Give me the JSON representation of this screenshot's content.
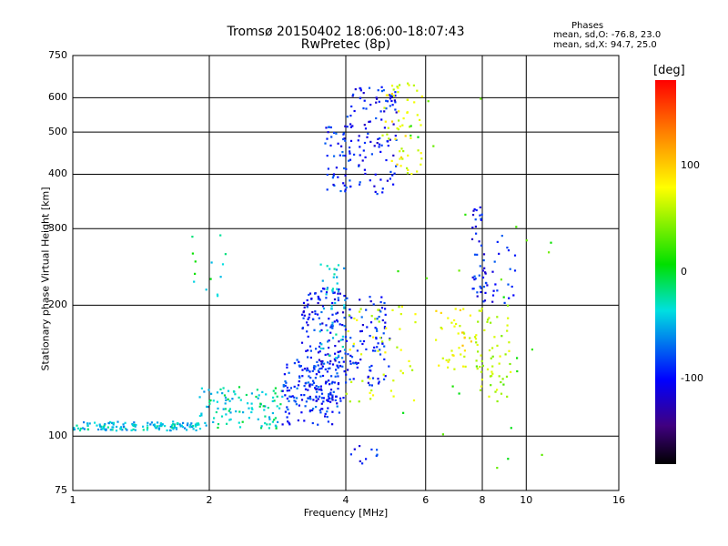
{
  "chart_data": {
    "type": "scatter",
    "title": "Tromsø 20150402 18:06:00-18:07:43",
    "subtitle": "RwPretec (8p)",
    "xlabel": "Frequency [MHz]",
    "ylabel": "Stationary phase Virtual Height [km]",
    "x_scale": "log",
    "y_scale": "log",
    "xlim": [
      1,
      16
    ],
    "ylim": [
      75,
      750
    ],
    "x_ticks": [
      1,
      2,
      4,
      6,
      8,
      10,
      16
    ],
    "y_ticks": [
      75,
      100,
      200,
      300,
      400,
      500,
      600,
      750
    ],
    "grid": true,
    "colorbar": {
      "label": "[deg]",
      "range": [
        -180,
        180
      ],
      "ticks": [
        100,
        0,
        -100
      ],
      "colormap": "rainbow"
    },
    "stats": {
      "heading": "Phases",
      "o_mode": "mean, sd,O: -76.8, 23.0",
      "x_mode": "mean, sd,X:  94.7, 25.0"
    },
    "clusters": [
      {
        "x": [
          1.0,
          1.9
        ],
        "y": [
          103,
          108
        ],
        "phase": -40,
        "count": 140
      },
      {
        "x": [
          1.9,
          2.9
        ],
        "y": [
          104,
          130
        ],
        "phase": -30,
        "count": 110
      },
      {
        "x": [
          2.9,
          3.9
        ],
        "y": [
          106,
          150
        ],
        "phase": -85,
        "count": 140
      },
      {
        "x": [
          3.2,
          4.0
        ],
        "y": [
          120,
          220
        ],
        "phase": -95,
        "count": 170
      },
      {
        "x": [
          3.5,
          4.0
        ],
        "y": [
          150,
          250
        ],
        "phase": -40,
        "count": 50
      },
      {
        "x": [
          4.0,
          5.0
        ],
        "y": [
          130,
          210
        ],
        "phase": -90,
        "count": 90
      },
      {
        "x": [
          4.0,
          5.8
        ],
        "y": [
          120,
          200
        ],
        "phase": 80,
        "count": 50
      },
      {
        "x": [
          3.6,
          4.1
        ],
        "y": [
          360,
          520
        ],
        "phase": -90,
        "count": 50
      },
      {
        "x": [
          4.0,
          5.2
        ],
        "y": [
          360,
          640
        ],
        "phase": -95,
        "count": 110
      },
      {
        "x": [
          4.8,
          5.9
        ],
        "y": [
          400,
          650
        ],
        "phase": 90,
        "count": 60
      },
      {
        "x": [
          6.3,
          7.6
        ],
        "y": [
          140,
          200
        ],
        "phase": 95,
        "count": 40
      },
      {
        "x": [
          7.6,
          8.2
        ],
        "y": [
          200,
          340
        ],
        "phase": -95,
        "count": 45
      },
      {
        "x": [
          7.7,
          9.3
        ],
        "y": [
          120,
          200
        ],
        "phase": 70,
        "count": 60
      },
      {
        "x": [
          8.3,
          9.5
        ],
        "y": [
          200,
          300
        ],
        "phase": -95,
        "count": 20
      },
      {
        "x": [
          1.8,
          2.2
        ],
        "y": [
          210,
          290
        ],
        "phase": -20,
        "count": 14
      },
      {
        "x": [
          4.0,
          4.7
        ],
        "y": [
          85,
          95
        ],
        "phase": -90,
        "count": 10
      },
      {
        "x": [
          5.0,
          12.0
        ],
        "y": [
          80,
          600
        ],
        "phase": 20,
        "count": 30
      }
    ]
  }
}
